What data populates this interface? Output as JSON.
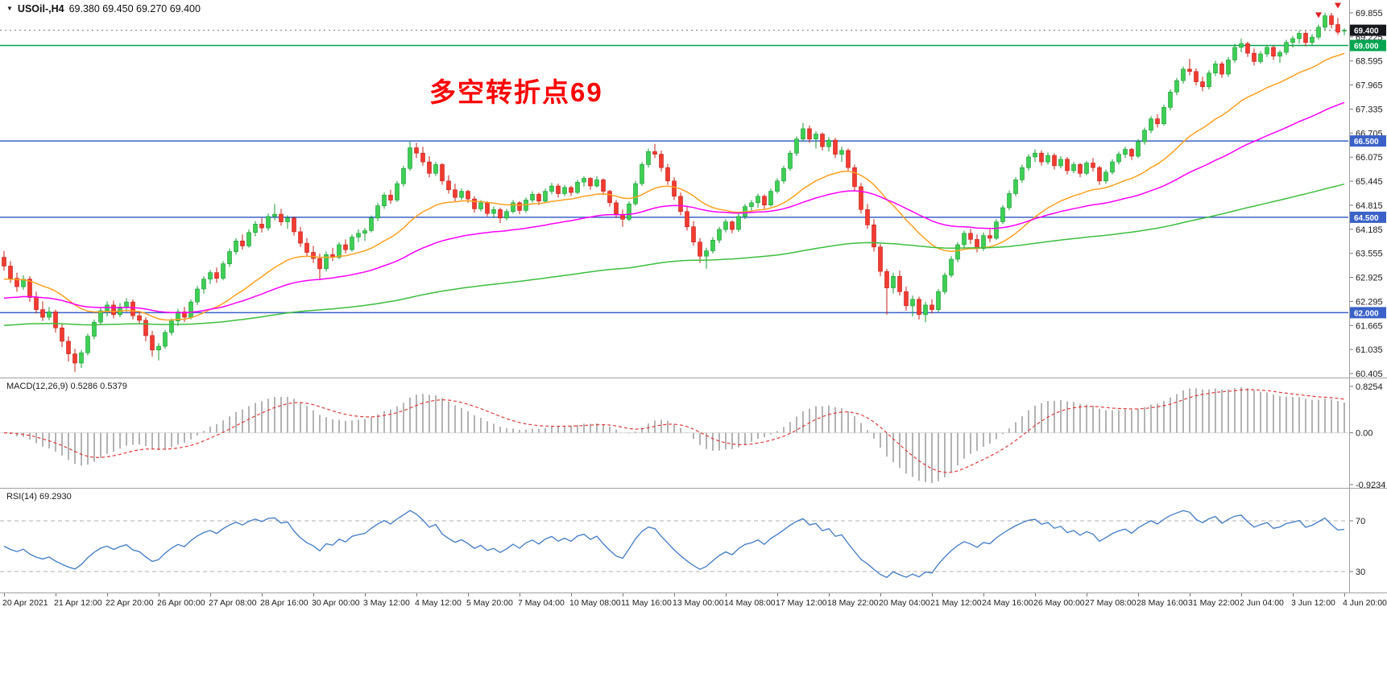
{
  "chart": {
    "title": {
      "marker": "▼",
      "symbol_period": "USOil-,H4",
      "ohlc": "69.380 69.450 69.270 69.400"
    },
    "annotation": {
      "text": "多空转折点69",
      "color": "#FF0000"
    },
    "price_axis": [
      "69.855",
      "69.225",
      "68.595",
      "67.965",
      "67.335",
      "66.705",
      "66.075",
      "65.445",
      "64.815",
      "64.185",
      "63.555",
      "62.925",
      "62.295",
      "61.665",
      "61.035",
      "60.405"
    ],
    "hlines": [
      {
        "value": 69.0,
        "label": "69.000",
        "color": "#00A550"
      },
      {
        "value": 66.5,
        "label": "66.500",
        "color": "#3A62C8"
      },
      {
        "value": 64.5,
        "label": "64.500",
        "color": "#3A62C8"
      },
      {
        "value": 62.0,
        "label": "62.000",
        "color": "#3A62C8"
      }
    ],
    "price_marker": {
      "value": 69.4,
      "label": "69.400",
      "bg": "#16181d"
    },
    "arrows": [
      {
        "bar": 204,
        "price": 69.72,
        "color": "#E02020"
      },
      {
        "bar": 207,
        "price": 69.97,
        "color": "#E02020"
      }
    ],
    "time_axis": [
      "20 Apr 2021",
      "21 Apr 12:00",
      "22 Apr 20:00",
      "26 Apr 00:00",
      "27 Apr 08:00",
      "28 Apr 16:00",
      "30 Apr 00:00",
      "3 May 12:00",
      "4 May 12:00",
      "5 May 20:00",
      "7 May 04:00",
      "10 May 08:00",
      "11 May 16:00",
      "13 May 00:00",
      "14 May 08:00",
      "17 May 12:00",
      "18 May 22:00",
      "20 May 04:00",
      "21 May 12:00",
      "24 May 16:00",
      "26 May 00:00",
      "27 May 08:00",
      "28 May 16:00",
      "31 May 22:00",
      "2 Jun 04:00",
      "3 Jun 12:00",
      "4 Jun 20:00"
    ],
    "colors": {
      "up": "#3ECF54",
      "up_stroke": "#149A32",
      "down": "#F23B31",
      "down_stroke": "#C01F16",
      "macd_hist": "#b3b3b3",
      "macd_signal": "#E03A3A",
      "rsi": "#4079C4",
      "rsi_levels": "#b0b0b0",
      "border": "#a0a0a0",
      "zero_line": "#d8d8d8",
      "price_marker_line": "#777777"
    }
  },
  "chart_data": {
    "type": "candlestick",
    "symbol": "USOil-",
    "timeframe": "H4",
    "ohlc_current": {
      "open": 69.38,
      "high": 69.45,
      "low": 69.27,
      "close": 69.4
    },
    "label_every_bars": 8,
    "moving_averages": [
      {
        "name": "ma-fast",
        "period": 24,
        "seed": 62.85,
        "color": "#FFA020"
      },
      {
        "name": "ma-medium",
        "period": 60,
        "seed": 62.35,
        "color": "#FF00FF"
      },
      {
        "name": "ma-slow",
        "period": 200,
        "seed": 61.65,
        "color": "#3DBE3D"
      }
    ],
    "macd": {
      "label": "MACD(12,26,9) 0.5286 0.5379",
      "params": [
        12,
        26,
        9
      ],
      "values_shown": [
        0.5286,
        0.5379
      ],
      "axis_labels": [
        "0.8254",
        "0.00",
        "-0.9234"
      ],
      "range": [
        0.8254,
        -0.9234
      ]
    },
    "rsi": {
      "label": "RSI(14) 69.2930",
      "period": 14,
      "value_shown": 69.293,
      "levels": [
        70,
        30
      ],
      "axis_labels": [
        "70",
        "30"
      ]
    },
    "candles": [
      [
        63.45,
        63.62,
        63.1,
        63.22
      ],
      [
        63.22,
        63.35,
        62.78,
        62.9
      ],
      [
        62.9,
        63.05,
        62.55,
        62.68
      ],
      [
        62.68,
        62.98,
        62.6,
        62.88
      ],
      [
        62.88,
        62.95,
        62.28,
        62.4
      ],
      [
        62.4,
        62.55,
        61.98,
        62.08
      ],
      [
        62.08,
        62.3,
        61.78,
        61.88
      ],
      [
        61.88,
        62.15,
        61.8,
        62.02
      ],
      [
        62.02,
        62.08,
        61.48,
        61.6
      ],
      [
        61.6,
        61.72,
        61.1,
        61.25
      ],
      [
        61.25,
        61.38,
        60.72,
        60.92
      ],
      [
        60.92,
        61.05,
        60.45,
        60.68
      ],
      [
        60.68,
        61.02,
        60.55,
        60.95
      ],
      [
        60.95,
        61.45,
        60.88,
        61.38
      ],
      [
        61.38,
        61.82,
        61.3,
        61.75
      ],
      [
        61.75,
        62.12,
        61.68,
        62.05
      ],
      [
        62.05,
        62.3,
        61.9,
        62.2
      ],
      [
        62.2,
        62.32,
        61.85,
        61.95
      ],
      [
        61.95,
        62.25,
        61.88,
        62.15
      ],
      [
        62.15,
        62.38,
        62.02,
        62.28
      ],
      [
        62.28,
        62.35,
        61.82,
        61.92
      ],
      [
        61.92,
        62.05,
        61.7,
        61.8
      ],
      [
        61.8,
        61.88,
        61.25,
        61.4
      ],
      [
        61.4,
        61.52,
        60.85,
        61.02
      ],
      [
        61.02,
        61.2,
        60.75,
        61.12
      ],
      [
        61.12,
        61.55,
        61.05,
        61.48
      ],
      [
        61.48,
        61.85,
        61.4,
        61.78
      ],
      [
        61.78,
        62.1,
        61.65,
        62.02
      ],
      [
        62.02,
        62.15,
        61.75,
        61.88
      ],
      [
        61.88,
        62.35,
        61.82,
        62.28
      ],
      [
        62.28,
        62.7,
        62.2,
        62.62
      ],
      [
        62.62,
        62.95,
        62.5,
        62.88
      ],
      [
        62.88,
        63.12,
        62.75,
        63.05
      ],
      [
        63.05,
        63.18,
        62.78,
        62.9
      ],
      [
        62.9,
        63.35,
        62.85,
        63.28
      ],
      [
        63.28,
        63.68,
        63.2,
        63.6
      ],
      [
        63.6,
        63.95,
        63.52,
        63.88
      ],
      [
        63.88,
        64.05,
        63.65,
        63.75
      ],
      [
        63.75,
        64.18,
        63.7,
        64.1
      ],
      [
        64.1,
        64.4,
        64.0,
        64.32
      ],
      [
        64.32,
        64.48,
        64.1,
        64.22
      ],
      [
        64.22,
        64.6,
        64.15,
        64.52
      ],
      [
        64.52,
        64.85,
        64.42,
        64.58
      ],
      [
        64.58,
        64.72,
        64.28,
        64.38
      ],
      [
        64.38,
        64.55,
        64.2,
        64.48
      ],
      [
        64.48,
        64.52,
        64.02,
        64.12
      ],
      [
        64.12,
        64.25,
        63.72,
        63.82
      ],
      [
        63.82,
        63.95,
        63.48,
        63.58
      ],
      [
        63.58,
        63.75,
        63.3,
        63.42
      ],
      [
        63.42,
        63.55,
        62.85,
        63.15
      ],
      [
        63.15,
        63.6,
        63.08,
        63.52
      ],
      [
        63.52,
        63.7,
        63.35,
        63.45
      ],
      [
        63.45,
        63.85,
        63.4,
        63.78
      ],
      [
        63.78,
        63.92,
        63.55,
        63.65
      ],
      [
        63.65,
        64.05,
        63.6,
        63.98
      ],
      [
        63.98,
        64.18,
        63.85,
        64.08
      ],
      [
        64.08,
        64.22,
        63.88,
        64.15
      ],
      [
        64.15,
        64.55,
        64.1,
        64.48
      ],
      [
        64.48,
        64.88,
        64.4,
        64.8
      ],
      [
        64.8,
        65.15,
        64.72,
        65.08
      ],
      [
        65.08,
        65.22,
        64.85,
        64.95
      ],
      [
        64.95,
        65.45,
        64.9,
        65.38
      ],
      [
        65.38,
        65.85,
        65.3,
        65.78
      ],
      [
        65.78,
        66.48,
        65.72,
        66.32
      ],
      [
        66.32,
        66.45,
        66.05,
        66.18
      ],
      [
        66.18,
        66.35,
        65.85,
        65.95
      ],
      [
        65.95,
        66.1,
        65.55,
        65.65
      ],
      [
        65.65,
        65.95,
        65.58,
        65.88
      ],
      [
        65.88,
        65.92,
        65.35,
        65.45
      ],
      [
        65.45,
        65.6,
        65.12,
        65.22
      ],
      [
        65.22,
        65.38,
        64.92,
        65.02
      ],
      [
        65.02,
        65.25,
        64.95,
        65.18
      ],
      [
        65.18,
        65.22,
        64.88,
        64.98
      ],
      [
        64.98,
        65.05,
        64.62,
        64.72
      ],
      [
        64.72,
        64.95,
        64.65,
        64.88
      ],
      [
        64.88,
        64.92,
        64.52,
        64.6
      ],
      [
        64.6,
        64.78,
        64.48,
        64.7
      ],
      [
        64.7,
        64.75,
        64.35,
        64.48
      ],
      [
        64.48,
        64.72,
        64.42,
        64.65
      ],
      [
        64.65,
        64.95,
        64.6,
        64.88
      ],
      [
        64.88,
        64.92,
        64.58,
        64.68
      ],
      [
        64.68,
        65.02,
        64.62,
        64.95
      ],
      [
        64.95,
        65.18,
        64.88,
        65.1
      ],
      [
        65.1,
        65.15,
        64.82,
        64.92
      ],
      [
        64.92,
        65.25,
        64.88,
        65.18
      ],
      [
        65.18,
        65.4,
        65.1,
        65.32
      ],
      [
        65.32,
        65.38,
        65.02,
        65.12
      ],
      [
        65.12,
        65.35,
        65.05,
        65.28
      ],
      [
        65.28,
        65.32,
        65.05,
        65.15
      ],
      [
        65.15,
        65.48,
        65.1,
        65.42
      ],
      [
        65.42,
        65.58,
        65.3,
        65.52
      ],
      [
        65.52,
        65.55,
        65.22,
        65.32
      ],
      [
        65.32,
        65.58,
        65.28,
        65.48
      ],
      [
        65.48,
        65.52,
        65.08,
        65.18
      ],
      [
        65.18,
        65.22,
        64.78,
        64.88
      ],
      [
        64.88,
        64.95,
        64.48,
        64.58
      ],
      [
        64.58,
        64.7,
        64.25,
        64.45
      ],
      [
        64.45,
        64.92,
        64.4,
        64.85
      ],
      [
        64.85,
        65.45,
        64.8,
        65.38
      ],
      [
        65.38,
        65.95,
        65.32,
        65.88
      ],
      [
        65.88,
        66.3,
        65.8,
        66.22
      ],
      [
        66.22,
        66.42,
        66.05,
        66.15
      ],
      [
        66.15,
        66.25,
        65.7,
        65.8
      ],
      [
        65.8,
        65.9,
        65.35,
        65.45
      ],
      [
        65.45,
        65.55,
        64.95,
        65.05
      ],
      [
        65.05,
        65.15,
        64.55,
        64.65
      ],
      [
        64.65,
        64.8,
        64.15,
        64.25
      ],
      [
        64.25,
        64.4,
        63.75,
        63.85
      ],
      [
        63.85,
        63.95,
        63.3,
        63.48
      ],
      [
        63.48,
        63.7,
        63.15,
        63.62
      ],
      [
        63.62,
        63.98,
        63.55,
        63.9
      ],
      [
        63.9,
        64.25,
        63.82,
        64.18
      ],
      [
        64.18,
        64.45,
        64.1,
        64.38
      ],
      [
        64.38,
        64.42,
        64.08,
        64.18
      ],
      [
        64.18,
        64.6,
        64.12,
        64.52
      ],
      [
        64.52,
        64.85,
        64.45,
        64.78
      ],
      [
        64.78,
        64.95,
        64.62,
        64.88
      ],
      [
        64.88,
        65.12,
        64.75,
        65.05
      ],
      [
        65.05,
        65.1,
        64.72,
        64.82
      ],
      [
        64.82,
        65.25,
        64.78,
        65.18
      ],
      [
        65.18,
        65.52,
        65.12,
        65.45
      ],
      [
        65.45,
        65.85,
        65.38,
        65.78
      ],
      [
        65.78,
        66.25,
        65.72,
        66.18
      ],
      [
        66.18,
        66.62,
        66.1,
        66.55
      ],
      [
        66.55,
        66.97,
        66.48,
        66.82
      ],
      [
        66.82,
        66.9,
        66.45,
        66.55
      ],
      [
        66.55,
        66.75,
        66.3,
        66.68
      ],
      [
        66.68,
        66.72,
        66.25,
        66.35
      ],
      [
        66.35,
        66.6,
        66.22,
        66.52
      ],
      [
        66.52,
        66.58,
        66.05,
        66.15
      ],
      [
        66.15,
        66.35,
        65.95,
        66.25
      ],
      [
        66.25,
        66.3,
        65.7,
        65.8
      ],
      [
        65.8,
        65.88,
        65.2,
        65.3
      ],
      [
        65.3,
        65.4,
        64.6,
        64.7
      ],
      [
        64.7,
        64.85,
        64.2,
        64.3
      ],
      [
        64.3,
        64.45,
        63.6,
        63.72
      ],
      [
        63.72,
        63.8,
        62.95,
        63.08
      ],
      [
        63.08,
        63.15,
        61.95,
        62.65
      ],
      [
        62.65,
        63.05,
        62.5,
        62.95
      ],
      [
        62.95,
        63.1,
        62.45,
        62.55
      ],
      [
        62.55,
        62.68,
        62.05,
        62.18
      ],
      [
        62.18,
        62.45,
        61.9,
        62.35
      ],
      [
        62.35,
        62.42,
        61.82,
        61.95
      ],
      [
        61.95,
        62.28,
        61.75,
        62.2
      ],
      [
        62.2,
        62.35,
        61.98,
        62.08
      ],
      [
        62.08,
        62.62,
        62.02,
        62.55
      ],
      [
        62.55,
        63.05,
        62.48,
        62.98
      ],
      [
        62.98,
        63.48,
        62.92,
        63.4
      ],
      [
        63.4,
        63.85,
        63.32,
        63.78
      ],
      [
        63.78,
        64.15,
        63.7,
        64.08
      ],
      [
        64.08,
        64.2,
        63.8,
        63.92
      ],
      [
        63.92,
        64.05,
        63.58,
        63.68
      ],
      [
        63.68,
        64.1,
        63.62,
        64.02
      ],
      [
        64.02,
        64.18,
        63.85,
        63.95
      ],
      [
        63.95,
        64.45,
        63.9,
        64.38
      ],
      [
        64.38,
        64.82,
        64.32,
        64.75
      ],
      [
        64.75,
        65.2,
        64.68,
        65.12
      ],
      [
        65.12,
        65.55,
        65.05,
        65.48
      ],
      [
        65.48,
        65.88,
        65.4,
        65.8
      ],
      [
        65.8,
        66.15,
        65.72,
        66.08
      ],
      [
        66.08,
        66.28,
        65.95,
        66.18
      ],
      [
        66.18,
        66.25,
        65.85,
        65.95
      ],
      [
        65.95,
        66.2,
        65.88,
        66.12
      ],
      [
        66.12,
        66.18,
        65.75,
        65.85
      ],
      [
        65.85,
        66.1,
        65.78,
        66.02
      ],
      [
        66.02,
        66.08,
        65.62,
        65.72
      ],
      [
        65.72,
        65.95,
        65.65,
        65.88
      ],
      [
        65.88,
        65.92,
        65.55,
        65.65
      ],
      [
        65.65,
        65.98,
        65.6,
        65.92
      ],
      [
        65.92,
        66.05,
        65.7,
        65.8
      ],
      [
        65.8,
        65.85,
        65.35,
        65.45
      ],
      [
        65.45,
        65.75,
        65.38,
        65.68
      ],
      [
        65.68,
        66.02,
        65.62,
        65.95
      ],
      [
        65.95,
        66.22,
        65.88,
        66.15
      ],
      [
        66.15,
        66.35,
        66.05,
        66.28
      ],
      [
        66.28,
        66.32,
        66.0,
        66.1
      ],
      [
        66.1,
        66.55,
        66.05,
        66.48
      ],
      [
        66.48,
        66.85,
        66.4,
        66.78
      ],
      [
        66.78,
        67.15,
        66.7,
        67.08
      ],
      [
        67.08,
        67.2,
        66.85,
        66.95
      ],
      [
        66.95,
        67.45,
        66.9,
        67.38
      ],
      [
        67.38,
        67.85,
        67.3,
        67.78
      ],
      [
        67.78,
        68.15,
        67.7,
        68.08
      ],
      [
        68.08,
        68.45,
        68.0,
        68.38
      ],
      [
        68.38,
        68.65,
        68.22,
        68.32
      ],
      [
        68.32,
        68.4,
        67.95,
        68.05
      ],
      [
        68.05,
        68.18,
        67.8,
        67.92
      ],
      [
        67.92,
        68.35,
        67.85,
        68.28
      ],
      [
        68.28,
        68.6,
        68.2,
        68.52
      ],
      [
        68.52,
        68.58,
        68.15,
        68.25
      ],
      [
        68.25,
        68.7,
        68.18,
        68.62
      ],
      [
        68.62,
        69.05,
        68.55,
        68.95
      ],
      [
        68.95,
        69.18,
        68.82,
        69.05
      ],
      [
        69.05,
        69.1,
        68.7,
        68.8
      ],
      [
        68.8,
        68.92,
        68.48,
        68.58
      ],
      [
        68.58,
        68.85,
        68.52,
        68.78
      ],
      [
        68.78,
        69.02,
        68.7,
        68.95
      ],
      [
        68.95,
        69.0,
        68.62,
        68.72
      ],
      [
        68.72,
        68.88,
        68.55,
        68.82
      ],
      [
        68.82,
        69.15,
        68.75,
        69.08
      ],
      [
        69.08,
        69.25,
        68.95,
        69.18
      ],
      [
        69.18,
        69.4,
        69.05,
        69.32
      ],
      [
        69.32,
        69.38,
        68.98,
        69.08
      ],
      [
        69.08,
        69.3,
        69.0,
        69.22
      ],
      [
        69.22,
        69.55,
        69.15,
        69.48
      ],
      [
        69.48,
        69.86,
        69.4,
        69.78
      ],
      [
        69.78,
        69.855,
        69.45,
        69.55
      ],
      [
        69.55,
        69.72,
        69.28,
        69.35
      ],
      [
        69.38,
        69.45,
        69.27,
        69.4
      ]
    ]
  }
}
